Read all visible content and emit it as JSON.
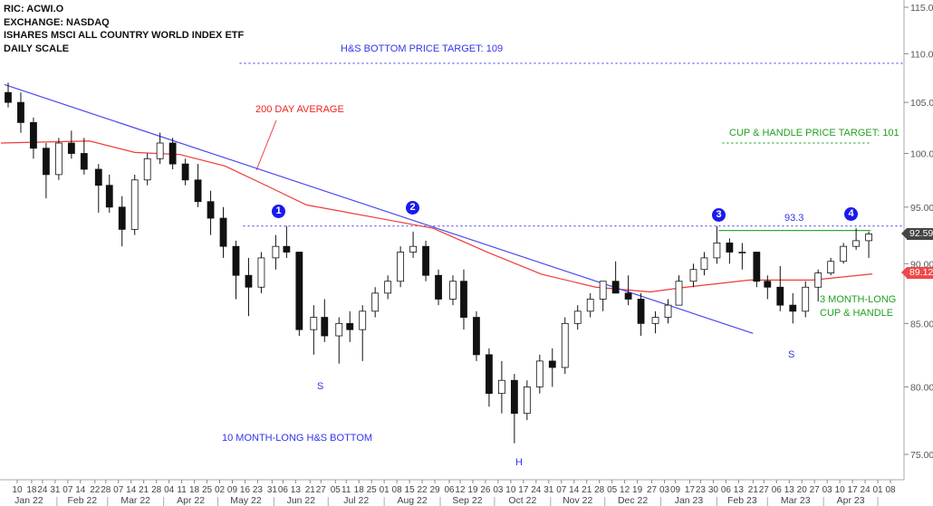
{
  "header": {
    "ric": "RIC: ACWI.O",
    "exchange": "EXCHANGE: NASDAQ",
    "name": "ISHARES MSCI ALL COUNTRY WORLD INDEX ETF",
    "scale": "DAILY SCALE"
  },
  "annotations": {
    "hs_target": "H&S BOTTOM PRICE TARGET: 109",
    "ma_label": "200 DAY AVERAGE",
    "cup_target": "CUP & HANDLE PRICE TARGET: 101",
    "neckline_value": "93.3",
    "points": [
      "1",
      "2",
      "3",
      "4"
    ],
    "left_shoulder": "S",
    "head": "H",
    "right_shoulder": "S",
    "hs_label": "10 MONTH-LONG H&S BOTTOM",
    "cup_label_1": "3 MONTH-LONG",
    "cup_label_2": "CUP & HANDLE",
    "last_price": "92.59",
    "ma_value": "89.12"
  },
  "colors": {
    "trendline": "#4a4af0",
    "ma": "#f03a3a",
    "target_blue": "#4a4af0",
    "target_green": "#33aa33",
    "candle_up": "#ffffff",
    "candle_down": "#111111"
  },
  "chart_data": {
    "type": "candlestick",
    "y_scale": "log",
    "ylim": [
      75,
      115
    ],
    "y_ticks": [
      "75.00",
      "80.00",
      "85.00",
      "90.00",
      "95.00",
      "100.00",
      "105.00",
      "110.00",
      "115.00"
    ],
    "x_range": [
      "2022-01-01",
      "2023-05-14"
    ],
    "grid": false,
    "x_ticks": [
      "2022-01-10",
      "2022-01-18",
      "2022-01-24",
      "2022-01-31",
      "2022-02-07",
      "2022-02-14",
      "2022-02-22",
      "2022-02-28",
      "2022-03-07",
      "2022-03-14",
      "2022-03-21",
      "2022-03-28",
      "2022-04-04",
      "2022-04-11",
      "2022-04-18",
      "2022-04-25",
      "2022-05-02",
      "2022-05-09",
      "2022-05-16",
      "2022-05-23",
      "2022-05-31",
      "2022-06-06",
      "2022-06-13",
      "2022-06-21",
      "2022-06-27",
      "2022-07-05",
      "2022-07-11",
      "2022-07-18",
      "2022-07-25",
      "2022-08-01",
      "2022-08-08",
      "2022-08-15",
      "2022-08-22",
      "2022-08-29",
      "2022-09-06",
      "2022-09-12",
      "2022-09-19",
      "2022-09-26",
      "2022-10-03",
      "2022-10-10",
      "2022-10-17",
      "2022-10-24",
      "2022-10-31",
      "2022-11-07",
      "2022-11-14",
      "2022-11-21",
      "2022-11-28",
      "2022-12-05",
      "2022-12-12",
      "2022-12-19",
      "2022-12-27",
      "2023-01-03",
      "2023-01-09",
      "2023-01-17",
      "2023-01-23",
      "2023-01-30",
      "2023-02-06",
      "2023-02-13",
      "2023-02-21",
      "2023-02-27",
      "2023-03-06",
      "2023-03-13",
      "2023-03-20",
      "2023-03-27",
      "2023-04-03",
      "2023-04-10",
      "2023-04-17",
      "2023-04-24",
      "2023-05-01",
      "2023-05-08"
    ],
    "months": [
      {
        "label": "Jan 22",
        "date": "2022-01"
      },
      {
        "label": "Feb 22",
        "date": "2022-02"
      },
      {
        "label": "Mar 22",
        "date": "2022-03"
      },
      {
        "label": "Apr 22",
        "date": "2022-04"
      },
      {
        "label": "May 22",
        "date": "2022-05"
      },
      {
        "label": "Jun 22",
        "date": "2022-06"
      },
      {
        "label": "Jul 22",
        "date": "2022-07"
      },
      {
        "label": "Aug 22",
        "date": "2022-08"
      },
      {
        "label": "Sep 22",
        "date": "2022-09"
      },
      {
        "label": "Oct 22",
        "date": "2022-10"
      },
      {
        "label": "Nov 22",
        "date": "2022-11"
      },
      {
        "label": "Dec 22",
        "date": "2022-12"
      },
      {
        "label": "Jan 23",
        "date": "2023-01"
      },
      {
        "label": "Feb 23",
        "date": "2023-02"
      },
      {
        "label": "Mar 23",
        "date": "2023-03"
      },
      {
        "label": "Apr 23",
        "date": "2023-04"
      }
    ],
    "ohlc_weekly": [
      [
        "2022-01-03",
        106,
        107,
        104.5,
        105
      ],
      [
        "2022-01-10",
        105,
        106,
        102,
        103
      ],
      [
        "2022-01-17",
        103,
        103.5,
        99.5,
        100.5
      ],
      [
        "2022-01-24",
        100.5,
        101,
        95.8,
        98
      ],
      [
        "2022-01-31",
        98,
        101.5,
        97.5,
        101
      ],
      [
        "2022-02-07",
        101,
        102.2,
        99.5,
        100
      ],
      [
        "2022-02-14",
        100,
        101.5,
        98,
        98.5
      ],
      [
        "2022-02-22",
        98.5,
        99,
        94.5,
        97
      ],
      [
        "2022-02-28",
        97,
        98,
        94.5,
        95
      ],
      [
        "2022-03-07",
        95,
        96,
        91.5,
        93
      ],
      [
        "2022-03-14",
        93,
        98,
        92.5,
        97.5
      ],
      [
        "2022-03-21",
        97.5,
        100,
        97,
        99.5
      ],
      [
        "2022-03-28",
        99.5,
        102,
        99,
        101
      ],
      [
        "2022-04-04",
        101,
        101.5,
        98.5,
        99
      ],
      [
        "2022-04-11",
        99,
        99.5,
        97,
        97.5
      ],
      [
        "2022-04-18",
        97.5,
        99,
        95,
        95.5
      ],
      [
        "2022-04-25",
        95.5,
        96.5,
        92.5,
        94
      ],
      [
        "2022-05-02",
        94,
        95,
        90.5,
        91.5
      ],
      [
        "2022-05-09",
        91.5,
        92,
        87,
        89
      ],
      [
        "2022-05-16",
        89,
        90.5,
        85.6,
        88
      ],
      [
        "2022-05-23",
        88,
        91,
        87.5,
        90.5
      ],
      [
        "2022-05-31",
        90.5,
        92.5,
        89.5,
        91.5
      ],
      [
        "2022-06-06",
        91.5,
        93.3,
        90.5,
        91
      ],
      [
        "2022-06-13",
        91,
        91,
        84,
        84.5
      ],
      [
        "2022-06-21",
        84.5,
        86.5,
        82.5,
        85.5
      ],
      [
        "2022-06-27",
        85.5,
        87,
        83.5,
        84
      ],
      [
        "2022-07-05",
        84,
        85.5,
        81.8,
        85
      ],
      [
        "2022-07-11",
        85,
        86,
        83.5,
        84.5
      ],
      [
        "2022-07-18",
        84.5,
        86.5,
        82,
        86
      ],
      [
        "2022-07-25",
        86,
        88,
        85.5,
        87.5
      ],
      [
        "2022-08-01",
        87.5,
        89,
        87,
        88.5
      ],
      [
        "2022-08-08",
        88.5,
        91.5,
        88,
        91
      ],
      [
        "2022-08-15",
        91,
        92.8,
        90.5,
        91.5
      ],
      [
        "2022-08-22",
        91.5,
        92,
        88.5,
        89
      ],
      [
        "2022-08-29",
        89,
        89.5,
        86.5,
        87
      ],
      [
        "2022-09-06",
        87,
        89,
        86.5,
        88.5
      ],
      [
        "2022-09-12",
        88.5,
        89.5,
        84.5,
        85.5
      ],
      [
        "2022-09-19",
        85.5,
        86,
        82,
        82.5
      ],
      [
        "2022-09-26",
        82.5,
        83,
        78.5,
        79.5
      ],
      [
        "2022-10-03",
        79.5,
        82,
        78,
        80.5
      ],
      [
        "2022-10-10",
        80.5,
        81,
        75.8,
        78
      ],
      [
        "2022-10-17",
        78,
        80.5,
        77.5,
        80
      ],
      [
        "2022-10-24",
        80,
        82.5,
        79.5,
        82
      ],
      [
        "2022-10-31",
        82,
        83,
        80,
        81.5
      ],
      [
        "2022-11-07",
        81.5,
        85.5,
        81,
        85
      ],
      [
        "2022-11-14",
        85,
        86.5,
        84.5,
        86
      ],
      [
        "2022-11-21",
        86,
        87.5,
        85.5,
        87
      ],
      [
        "2022-11-28",
        87,
        88.5,
        86,
        88.5
      ],
      [
        "2022-12-05",
        88.5,
        90.2,
        87.5,
        87.5
      ],
      [
        "2022-12-12",
        87.5,
        89,
        86.5,
        87
      ],
      [
        "2022-12-19",
        87,
        87.5,
        84,
        85
      ],
      [
        "2022-12-27",
        85,
        86,
        84.2,
        85.5
      ],
      [
        "2023-01-03",
        85.5,
        87,
        85,
        86.5
      ],
      [
        "2023-01-09",
        86.5,
        89,
        86.5,
        88.5
      ],
      [
        "2023-01-17",
        88.5,
        90,
        88,
        89.5
      ],
      [
        "2023-01-23",
        89.5,
        91,
        89,
        90.5
      ],
      [
        "2023-01-30",
        90.5,
        93.3,
        90,
        91.8
      ],
      [
        "2023-02-06",
        91.8,
        92.2,
        90,
        91
      ],
      [
        "2023-02-13",
        91,
        91.8,
        89.5,
        91
      ],
      [
        "2023-02-21",
        91,
        91,
        88,
        88.5
      ],
      [
        "2023-02-27",
        88.5,
        89,
        87,
        88
      ],
      [
        "2023-03-06",
        88,
        89.8,
        86,
        86.5
      ],
      [
        "2023-03-13",
        86.5,
        87.5,
        85,
        86
      ],
      [
        "2023-03-20",
        86,
        88.5,
        85.5,
        88
      ],
      [
        "2023-03-27",
        88,
        89.5,
        86.8,
        89.2
      ],
      [
        "2023-04-03",
        89.2,
        90.5,
        89,
        90.2
      ],
      [
        "2023-04-10",
        90.2,
        91.8,
        90,
        91.5
      ],
      [
        "2023-04-17",
        91.5,
        93.1,
        91.2,
        92
      ],
      [
        "2023-04-24",
        92,
        92.8,
        90.5,
        92.59
      ]
    ],
    "ma_200": [
      [
        "2022-01-01",
        101.0
      ],
      [
        "2022-02-19",
        101.2
      ],
      [
        "2022-03-16",
        100.1
      ],
      [
        "2022-04-10",
        99.9
      ],
      [
        "2022-05-05",
        98.8
      ],
      [
        "2022-05-30",
        96.8
      ],
      [
        "2022-06-19",
        95.2
      ],
      [
        "2022-07-29",
        94.0
      ],
      [
        "2022-08-28",
        93.1
      ],
      [
        "2022-09-27",
        91.0
      ],
      [
        "2022-10-27",
        89.1
      ],
      [
        "2022-11-26",
        88.0
      ],
      [
        "2022-12-26",
        87.6
      ],
      [
        "2023-01-15",
        88.0
      ],
      [
        "2023-02-19",
        88.6
      ],
      [
        "2023-03-26",
        88.6
      ],
      [
        "2023-04-28",
        89.12
      ]
    ],
    "trendline": [
      [
        "2022-01-03",
        106.8
      ],
      [
        "2023-02-21",
        84.2
      ]
    ],
    "levels": [
      {
        "name": "hs-target",
        "value": 109,
        "from": "2022-05-13",
        "to": "end",
        "style": "dotted",
        "color": "#4a4af0"
      },
      {
        "name": "neckline",
        "value": 93.3,
        "from": "2022-05-15",
        "to": "end",
        "style": "dotted",
        "color": "#4a4af0"
      },
      {
        "name": "cup-rim",
        "value": 92.9,
        "from": "2023-02-02",
        "to": "2023-04-24",
        "style": "solid",
        "color": "#33aa33"
      },
      {
        "name": "cup-target",
        "value": 101,
        "from": "2023-02-04",
        "to": "2023-04-24",
        "style": "dotted",
        "color": "#33aa33"
      }
    ]
  }
}
